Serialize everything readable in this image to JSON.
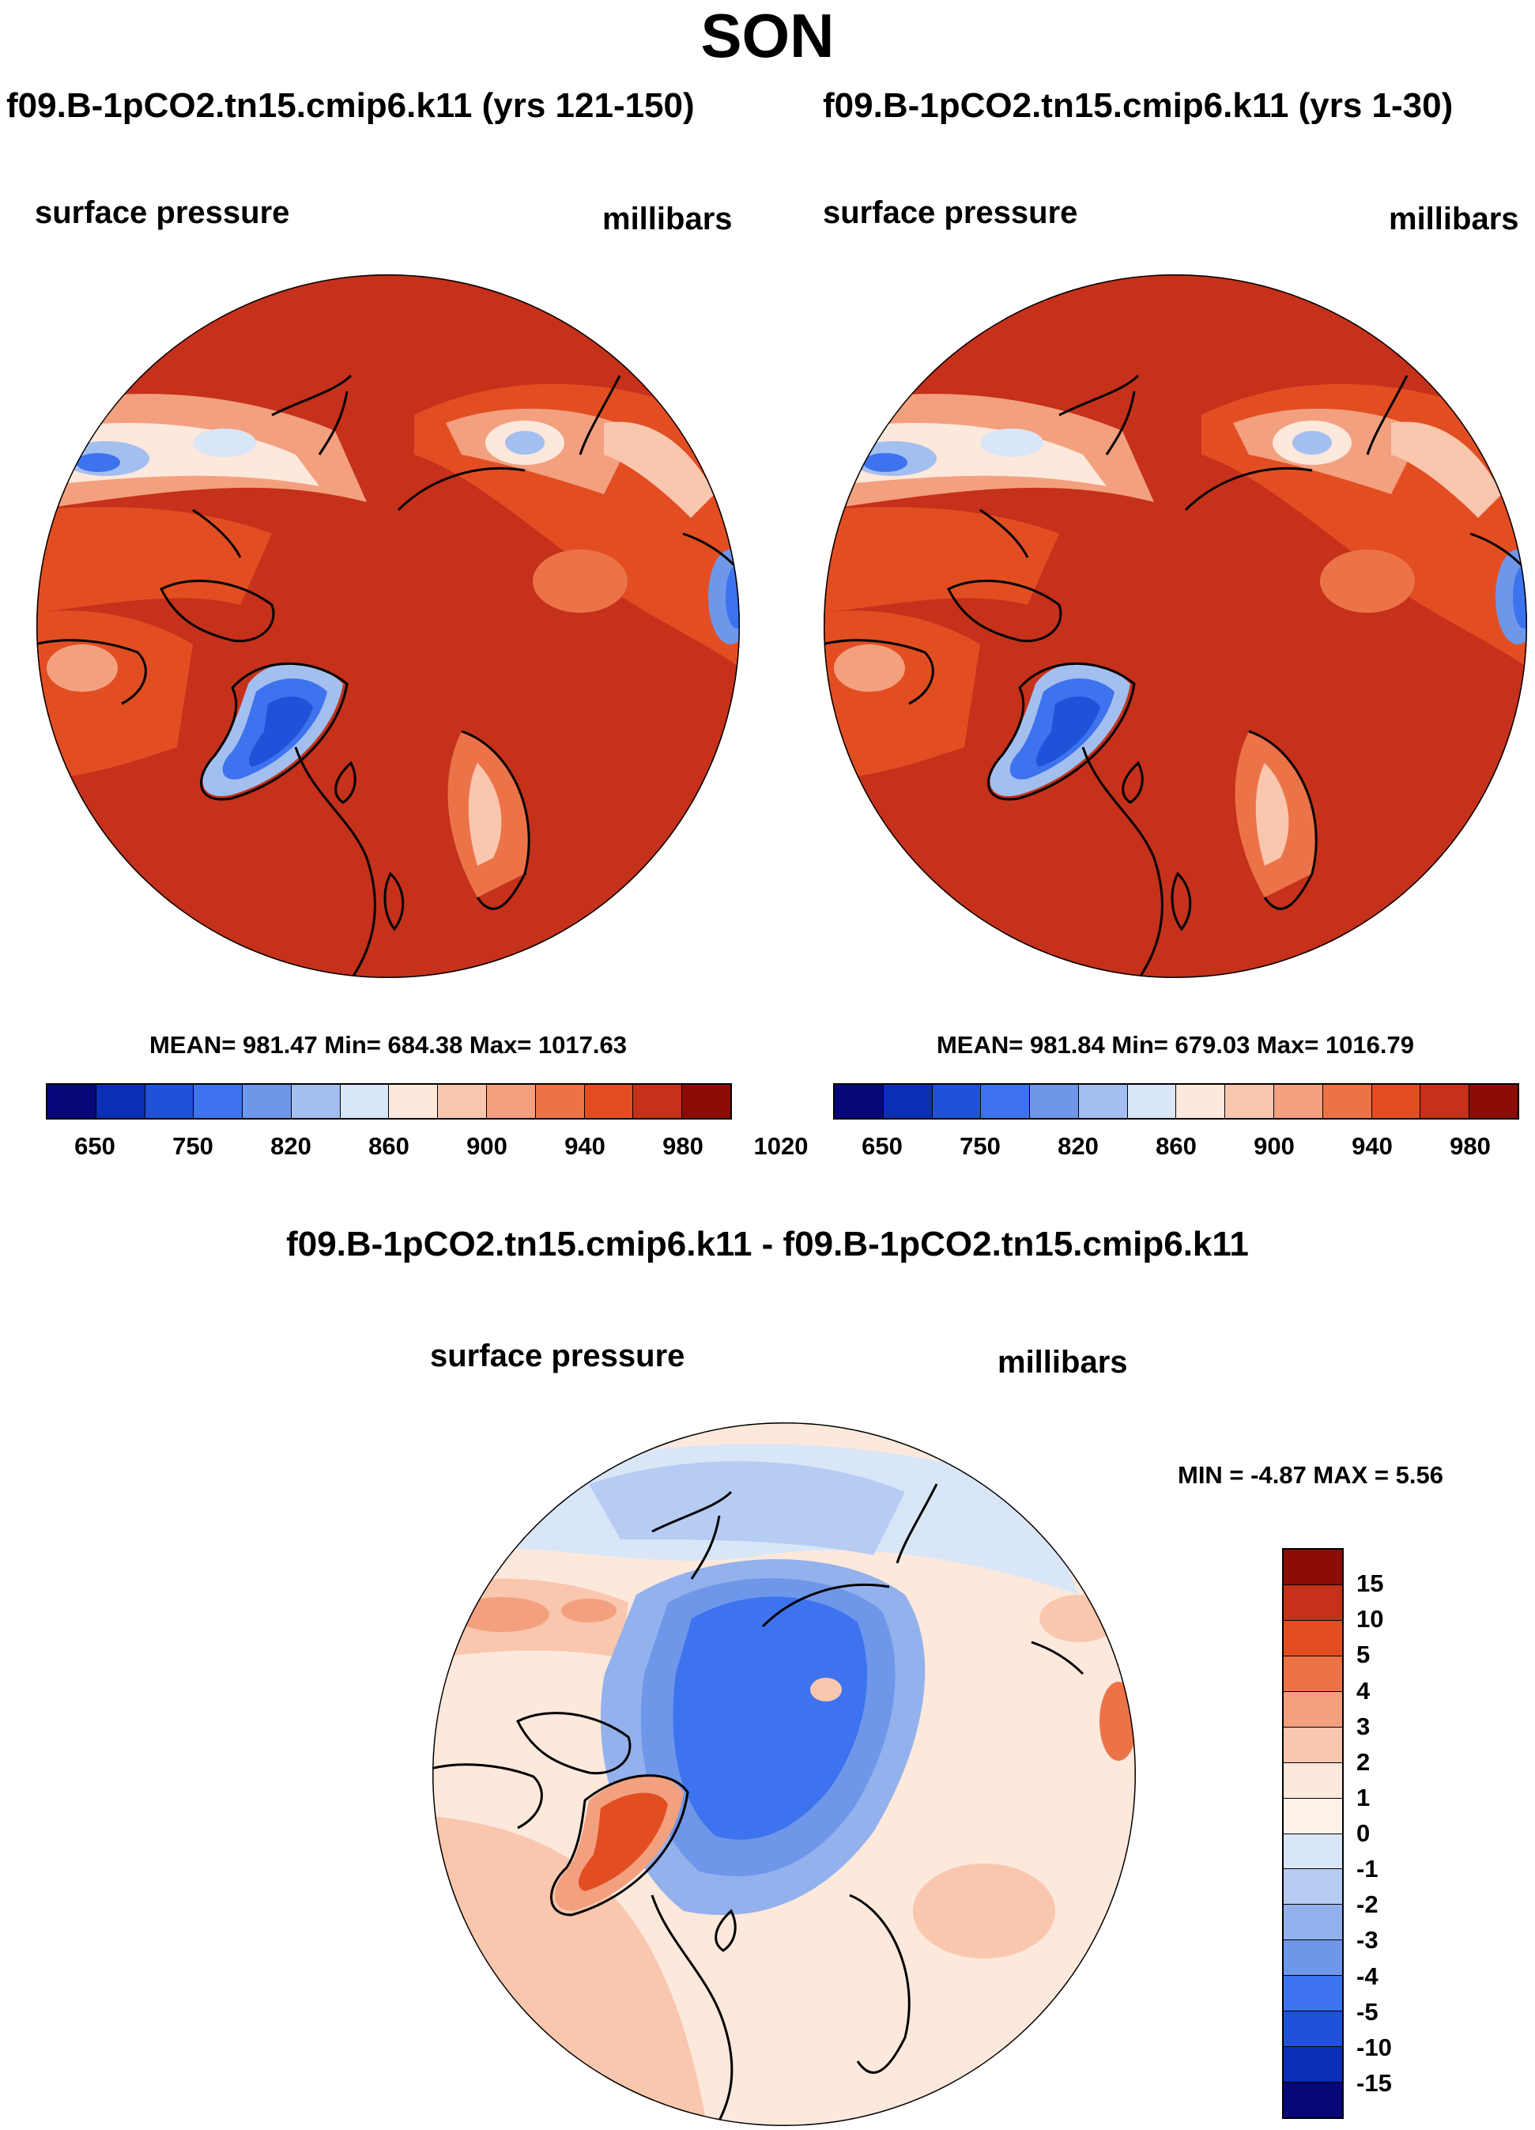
{
  "title": "SON",
  "panels": [
    {
      "case_title": "f09.B-1pCO2.tn15.cmip6.k11 (yrs 121-150)",
      "left_label": "surface pressure",
      "right_label": "millibars",
      "stats": {
        "mean": "981.47",
        "min": "684.38",
        "max": "1017.63"
      },
      "stats_text": "MEAN= 981.47  Min= 684.38  Max= 1017.63"
    },
    {
      "case_title": "f09.B-1pCO2.tn15.cmip6.k11 (yrs 1-30)",
      "left_label": "surface pressure",
      "right_label": "millibars",
      "stats": {
        "mean": "981.84",
        "min": "679.03",
        "max": "1016.79"
      },
      "stats_text": "MEAN= 981.84  Min= 679.03  Max= 1016.79"
    }
  ],
  "abs_colorbar": {
    "tick_labels": [
      "650",
      "750",
      "820",
      "860",
      "900",
      "940",
      "980",
      "1020"
    ],
    "colors": [
      "#08077a",
      "#0a2fb4",
      "#1f52d9",
      "#3d73ee",
      "#6e97ea",
      "#a3bff0",
      "#d8e6f8",
      "#fde8dc",
      "#f9c6ae",
      "#f3a07f",
      "#ec7348",
      "#e24e22",
      "#c5311a",
      "#8b0d06"
    ]
  },
  "diff_panel": {
    "title": "f09.B-1pCO2.tn15.cmip6.k11 - f09.B-1pCO2.tn15.cmip6.k11",
    "left_label": "surface pressure",
    "right_label": "millibars",
    "stats_text": "MIN =  -4.87 MAX =   5.56",
    "stats": {
      "min": "-4.87",
      "max": "5.56"
    }
  },
  "diff_colorbar": {
    "tick_labels": [
      "15",
      "10",
      "5",
      "4",
      "3",
      "2",
      "1",
      "0",
      "-1",
      "-2",
      "-3",
      "-4",
      "-5",
      "-10",
      "-15"
    ],
    "colors": [
      "#8b0d06",
      "#c5311a",
      "#e24e22",
      "#ec7348",
      "#f3a07f",
      "#f9c6ae",
      "#fde8dc",
      "#fdf1e8",
      "#d8e6f8",
      "#b7ccf2",
      "#93b1ec",
      "#6e97ea",
      "#3d73ee",
      "#1f52d9",
      "#0a2fb4",
      "#08077a"
    ]
  }
}
